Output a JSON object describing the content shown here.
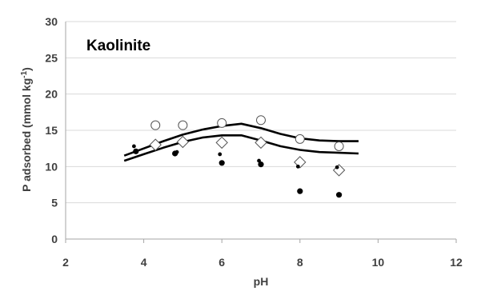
{
  "chart_data": {
    "type": "scatter",
    "title": "Kaolinite",
    "xlabel": "pH",
    "ylabel": "P adsorbed (mmol kg",
    "ylabel_sup": "-1",
    "ylabel_end": ")",
    "xlim": [
      2,
      12
    ],
    "ylim": [
      0,
      30
    ],
    "xticks": [
      "2",
      "4",
      "6",
      "8",
      "10",
      "12"
    ],
    "yticks": [
      "0",
      "5",
      "10",
      "15",
      "20",
      "25",
      "30"
    ],
    "grid": "horizontal",
    "series": [
      {
        "marker": "circle-open",
        "x": [
          4.3,
          5.0,
          6.0,
          7.0,
          8.0,
          9.0
        ],
        "y": [
          15.7,
          15.7,
          16.0,
          16.4,
          13.8,
          12.8
        ]
      },
      {
        "marker": "diamond-open",
        "x": [
          4.3,
          5.0,
          6.0,
          7.0,
          8.0,
          9.0
        ],
        "y": [
          13.0,
          13.4,
          13.3,
          13.3,
          10.6,
          9.5
        ]
      },
      {
        "marker": "dot-large",
        "x": [
          3.8,
          4.8,
          6.0,
          7.0,
          8.0,
          9.0
        ],
        "y": [
          12.1,
          11.8,
          10.5,
          10.3,
          6.6,
          6.1
        ]
      },
      {
        "marker": "dot-small",
        "x": [
          3.75,
          4.85,
          5.95,
          6.95,
          7.95,
          8.95
        ],
        "y": [
          12.8,
          12.0,
          11.7,
          10.8,
          10.0,
          9.9
        ]
      },
      {
        "marker": "line",
        "x": [
          3.5,
          4.0,
          4.5,
          5.0,
          5.5,
          6.0,
          6.5,
          7.0,
          7.5,
          8.0,
          8.5,
          9.0,
          9.5
        ],
        "y": [
          11.5,
          12.5,
          13.5,
          14.4,
          15.1,
          15.6,
          15.9,
          15.3,
          14.5,
          13.9,
          13.6,
          13.5,
          13.5
        ]
      },
      {
        "marker": "line",
        "x": [
          3.5,
          4.0,
          4.5,
          5.0,
          5.5,
          6.0,
          6.5,
          7.0,
          7.5,
          8.0,
          8.5,
          9.0,
          9.5
        ],
        "y": [
          10.8,
          11.7,
          12.6,
          13.4,
          14.0,
          14.3,
          14.3,
          13.6,
          12.8,
          12.3,
          12.0,
          11.9,
          11.8
        ]
      }
    ],
    "colors": {
      "grid": "#d9d9d9",
      "axis": "#a6a6a6",
      "marker": "#000000",
      "open_marker_edge": "#555555"
    }
  }
}
